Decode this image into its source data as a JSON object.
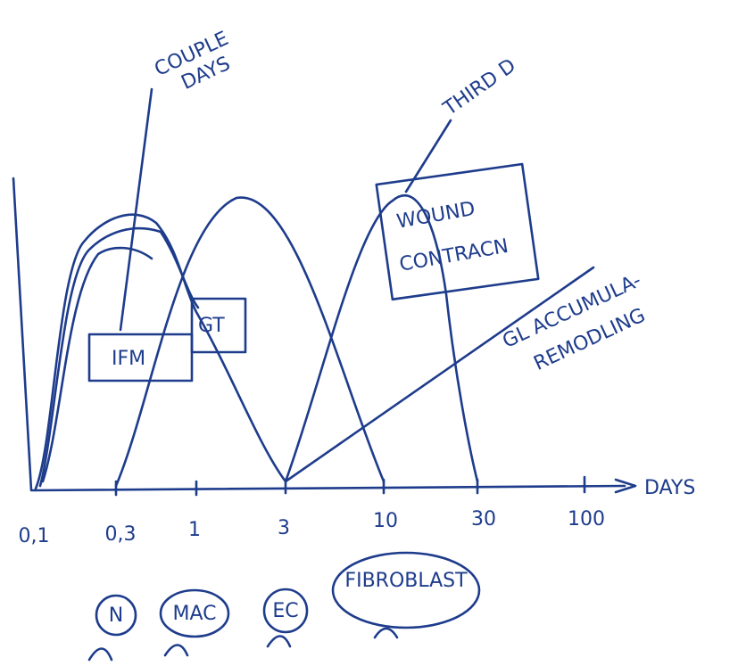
{
  "annotations": {
    "couple_days": [
      "COUPLE",
      "DAYS"
    ],
    "third_d": "THIRD D",
    "wound": [
      "WOUND",
      "CONTRACN"
    ],
    "gl": [
      "GL ACCUMULA-",
      "REMODLING"
    ]
  },
  "boxes": [
    "IFM",
    "GT"
  ],
  "axis": {
    "label": "DAYS",
    "ticks": [
      "0,1",
      "0,3",
      "1",
      "3",
      "10",
      "30",
      "100"
    ]
  },
  "cells": [
    "N",
    "MAC",
    "EC",
    "FIBROBLAST"
  ]
}
